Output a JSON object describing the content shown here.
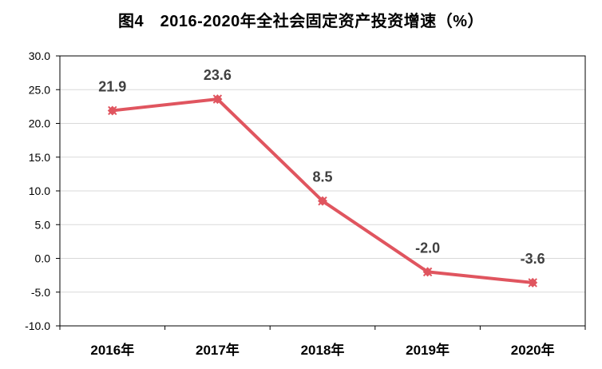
{
  "chart_data": {
    "type": "line",
    "title": "图4　2016-2020年全社会固定资产投资增速（%）",
    "categories": [
      "2016年",
      "2017年",
      "2018年",
      "2019年",
      "2020年"
    ],
    "series": [
      {
        "values": [
          21.9,
          23.6,
          8.5,
          -2.0,
          -3.6
        ]
      }
    ],
    "data_labels": [
      "21.9",
      "23.6",
      "8.5",
      "-2.0",
      "-3.6"
    ],
    "y_ticks": [
      "-10.0",
      "-5.0",
      "0.0",
      "5.0",
      "10.0",
      "15.0",
      "20.0",
      "25.0",
      "30.0"
    ],
    "ylim": [
      -10,
      30
    ],
    "ystep": 5,
    "grid": true,
    "legend": "none",
    "colors": {
      "line": "#E0555F",
      "grid": "#D9D9D9",
      "axis": "#000000",
      "label": "#404040"
    }
  }
}
